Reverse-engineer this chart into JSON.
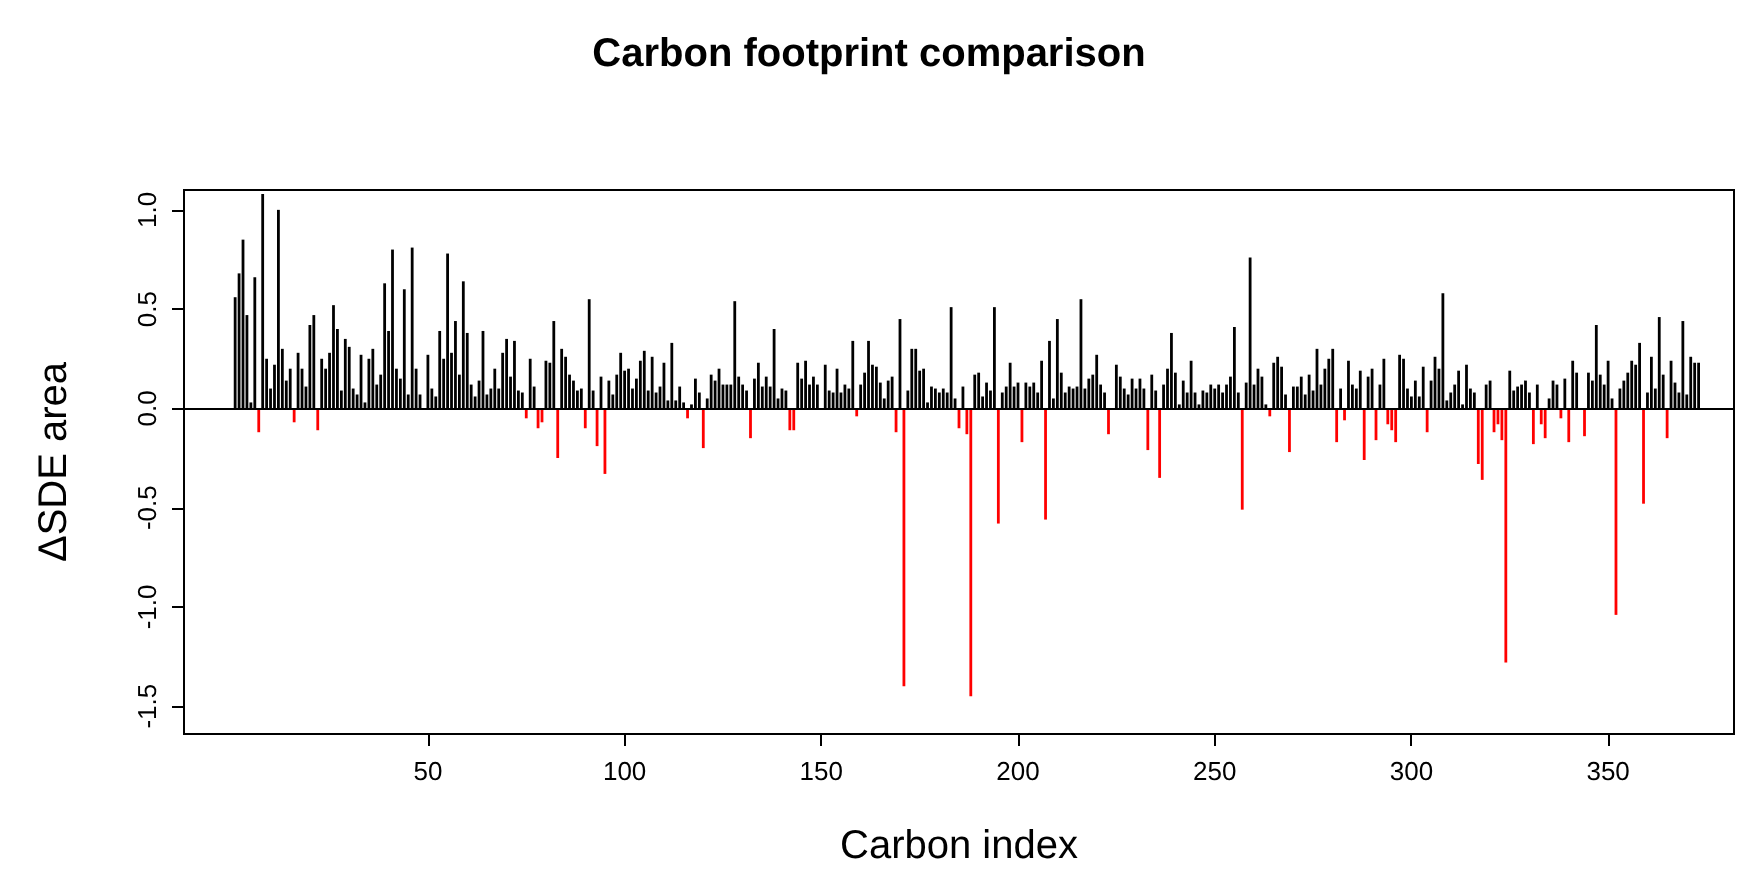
{
  "chart_data": {
    "type": "bar",
    "title": "Carbon footprint comparison",
    "xlabel": "Carbon index",
    "ylabel": "ΔSDE area",
    "x": [
      1,
      2,
      3,
      4,
      5,
      6,
      7,
      8,
      9,
      10,
      11,
      12,
      13,
      14,
      15,
      16,
      17,
      18,
      19,
      20,
      21,
      22,
      23,
      24,
      25,
      26,
      27,
      28,
      29,
      30,
      31,
      32,
      33,
      34,
      35,
      36,
      37,
      38,
      39,
      40,
      41,
      42,
      43,
      44,
      45,
      46,
      47,
      48,
      49,
      50,
      51,
      52,
      53,
      54,
      55,
      56,
      57,
      58,
      59,
      60,
      61,
      62,
      63,
      64,
      65,
      66,
      67,
      68,
      69,
      70,
      71,
      72,
      73,
      74,
      75,
      76,
      77,
      78,
      79,
      80,
      81,
      82,
      83,
      84,
      85,
      86,
      87,
      88,
      89,
      90,
      91,
      92,
      93,
      94,
      95,
      96,
      97,
      98,
      99,
      100,
      101,
      102,
      103,
      104,
      105,
      106,
      107,
      108,
      109,
      110,
      111,
      112,
      113,
      114,
      115,
      116,
      117,
      118,
      119,
      120,
      121,
      122,
      123,
      124,
      125,
      126,
      127,
      128,
      129,
      130,
      131,
      132,
      133,
      134,
      135,
      136,
      137,
      138,
      139,
      140,
      141,
      142,
      143,
      144,
      145,
      146,
      147,
      148,
      149,
      150,
      151,
      152,
      153,
      154,
      155,
      156,
      157,
      158,
      159,
      160,
      161,
      162,
      163,
      164,
      165,
      166,
      167,
      168,
      169,
      170,
      171,
      172,
      173,
      174,
      175,
      176,
      177,
      178,
      179,
      180,
      181,
      182,
      183,
      184,
      185,
      186,
      187,
      188,
      189,
      190,
      191,
      192,
      193,
      194,
      195,
      196,
      197,
      198,
      199,
      200,
      201,
      202,
      203,
      204,
      205,
      206,
      207,
      208,
      209,
      210,
      211,
      212,
      213,
      214,
      215,
      216,
      217,
      218,
      219,
      220,
      221,
      222,
      223,
      224,
      225,
      226,
      227,
      228,
      229,
      230,
      231,
      232,
      233,
      234,
      235,
      236,
      237,
      238,
      239,
      240,
      241,
      242,
      243,
      244,
      245,
      246,
      247,
      248,
      249,
      250,
      251,
      252,
      253,
      254,
      255,
      256,
      257,
      258,
      259,
      260,
      261,
      262,
      263,
      264,
      265,
      266,
      267,
      268,
      269,
      270,
      271,
      272,
      273,
      274,
      275,
      276,
      277,
      278,
      279,
      280,
      281,
      282,
      283,
      284,
      285,
      286,
      287,
      288,
      289,
      290,
      291,
      292,
      293,
      294,
      295,
      296,
      297,
      298,
      299,
      300,
      301,
      302,
      303,
      304,
      305,
      306,
      307,
      308,
      309,
      310,
      311,
      312,
      313,
      314,
      315,
      316,
      317,
      318,
      319,
      320,
      321,
      322,
      323,
      324,
      325,
      326,
      327,
      328,
      329,
      330,
      331,
      332,
      333,
      334,
      335,
      336,
      337,
      338,
      339,
      340,
      341,
      342,
      343,
      344,
      345,
      346,
      347,
      348,
      349,
      350,
      351,
      352,
      353,
      354,
      355,
      356,
      357,
      358,
      359,
      360,
      361,
      362,
      363,
      364,
      365,
      366,
      367,
      368,
      369,
      370,
      371,
      372,
      373
    ],
    "series": [
      {
        "color": "#000000",
        "values": [
          0.56,
          0.68,
          0.85,
          0.47,
          0.03,
          0.66,
          null,
          1.08,
          0.25,
          0.1,
          0.22,
          1.0,
          0.3,
          0.14,
          0.2,
          null,
          0.28,
          0.2,
          0.11,
          0.42,
          0.47,
          null,
          0.25,
          0.2,
          0.28,
          0.52,
          0.4,
          0.09,
          0.35,
          0.31,
          0.1,
          0.07,
          0.27,
          0.03,
          0.25,
          0.3,
          0.12,
          0.17,
          0.63,
          0.39,
          0.8,
          0.2,
          0.15,
          0.6,
          0.07,
          0.81,
          0.2,
          0.07,
          null,
          0.27,
          0.1,
          0.06,
          0.39,
          0.25,
          0.78,
          0.28,
          0.44,
          0.17,
          0.64,
          0.38,
          0.12,
          0.06,
          0.14,
          0.39,
          0.07,
          0.1,
          0.2,
          0.1,
          0.28,
          0.35,
          0.16,
          0.34,
          0.09,
          0.08,
          null,
          0.25,
          0.11,
          null,
          null,
          0.24,
          0.23,
          0.44,
          null,
          0.3,
          0.26,
          0.17,
          0.14,
          0.09,
          0.1,
          null,
          0.55,
          0.09,
          null,
          0.16,
          null,
          0.14,
          0.07,
          0.17,
          0.28,
          0.19,
          0.2,
          0.1,
          0.15,
          0.24,
          0.29,
          0.09,
          0.26,
          0.08,
          0.11,
          0.23,
          0.04,
          0.33,
          0.04,
          0.11,
          0.03,
          null,
          0.02,
          0.15,
          0.08,
          null,
          0.05,
          0.17,
          0.14,
          0.2,
          0.12,
          0.12,
          0.12,
          0.54,
          0.16,
          0.12,
          0.09,
          null,
          0.15,
          0.23,
          0.11,
          0.16,
          0.11,
          0.4,
          0.05,
          0.1,
          0.09,
          null,
          null,
          0.23,
          0.15,
          0.24,
          0.12,
          0.16,
          0.12,
          null,
          0.22,
          0.09,
          0.08,
          0.2,
          0.08,
          0.12,
          0.1,
          0.34,
          null,
          0.12,
          0.18,
          0.34,
          0.22,
          0.21,
          0.13,
          0.05,
          0.14,
          0.16,
          null,
          0.45,
          null,
          0.09,
          0.3,
          0.3,
          0.19,
          0.2,
          0.03,
          0.11,
          0.1,
          0.08,
          0.1,
          0.08,
          0.51,
          0.05,
          null,
          0.11,
          null,
          null,
          0.17,
          0.18,
          0.06,
          0.13,
          0.09,
          0.51,
          null,
          0.08,
          0.11,
          0.23,
          0.11,
          0.13,
          null,
          0.13,
          0.11,
          0.13,
          0.08,
          0.24,
          null,
          0.34,
          0.05,
          0.45,
          0.18,
          0.08,
          0.11,
          0.1,
          0.11,
          0.55,
          0.1,
          0.15,
          0.17,
          0.27,
          0.12,
          0.08,
          null,
          null,
          0.22,
          0.16,
          0.1,
          0.07,
          0.15,
          0.1,
          0.15,
          0.1,
          null,
          0.17,
          0.09,
          null,
          0.12,
          0.2,
          0.38,
          0.18,
          0.02,
          0.14,
          0.08,
          0.24,
          0.08,
          0.02,
          0.09,
          0.08,
          0.12,
          0.1,
          0.12,
          0.08,
          0.12,
          0.16,
          0.41,
          0.08,
          null,
          0.13,
          0.76,
          0.12,
          0.2,
          0.16,
          0.02,
          null,
          0.23,
          0.26,
          0.21,
          0.07,
          null,
          0.11,
          0.11,
          0.16,
          0.07,
          0.17,
          0.09,
          0.3,
          0.12,
          0.2,
          0.25,
          0.3,
          null,
          0.1,
          null,
          0.24,
          0.12,
          0.1,
          0.19,
          null,
          0.16,
          0.2,
          null,
          0.12,
          0.25,
          null,
          null,
          null,
          0.27,
          0.25,
          0.1,
          0.06,
          0.14,
          0.06,
          0.21,
          null,
          0.14,
          0.26,
          0.2,
          0.58,
          0.04,
          0.08,
          0.12,
          0.19,
          0.02,
          0.22,
          0.1,
          0.08,
          null,
          null,
          0.12,
          0.14,
          null,
          null,
          null,
          null,
          0.19,
          0.09,
          0.11,
          0.12,
          0.14,
          0.08,
          null,
          0.12,
          null,
          null,
          0.05,
          0.14,
          0.12,
          null,
          0.15,
          null,
          0.24,
          0.18,
          null,
          null,
          0.18,
          0.14,
          0.42,
          0.17,
          0.12,
          0.24,
          0.05,
          null,
          0.1,
          0.14,
          0.18,
          0.24,
          0.22,
          0.33,
          null,
          0.08,
          0.26,
          0.1,
          0.46,
          0.17,
          null,
          0.24,
          0.13,
          0.08,
          0.44,
          0.07,
          0.26,
          0.23,
          0.23
        ]
      },
      {
        "color": "#ff0000",
        "x": [
          7,
          16,
          22,
          75,
          78,
          79,
          83,
          90,
          93,
          95,
          116,
          120,
          132,
          142,
          143,
          150,
          159,
          169,
          171,
          185,
          187,
          188,
          195,
          201,
          207,
          223,
          224,
          233,
          236,
          257,
          264,
          269,
          281,
          283,
          288,
          291,
          294,
          295,
          296,
          304,
          317,
          318,
          321,
          322,
          323,
          324,
          331,
          333,
          334,
          338,
          340,
          343,
          344,
          352,
          359,
          365
        ],
        "values": [
          -0.12,
          -0.07,
          -0.11,
          -0.05,
          -0.1,
          -0.07,
          -0.25,
          -0.1,
          -0.19,
          -0.33,
          -0.05,
          -0.2,
          -0.15,
          -0.11,
          -0.11,
          null,
          -0.04,
          -0.12,
          -1.4,
          -0.1,
          -0.13,
          -1.45,
          -0.58,
          -0.17,
          -0.56,
          -0.13,
          null,
          -0.21,
          -0.35,
          -0.51,
          -0.04,
          -0.22,
          -0.17,
          -0.06,
          -0.26,
          -0.16,
          -0.08,
          -0.11,
          -0.17,
          -0.12,
          -0.28,
          -0.36,
          -0.12,
          -0.08,
          -0.16,
          -1.28,
          -0.18,
          -0.08,
          -0.15,
          -0.05,
          -0.17,
          null,
          -0.14,
          -1.04,
          -0.48,
          -0.15
        ]
      }
    ],
    "ref_lines": [
      {
        "axis": "y",
        "value": 0,
        "color": "#000000"
      }
    ],
    "xlim": [
      -12,
      382
    ],
    "xticks": [
      50,
      100,
      150,
      200,
      250,
      300,
      350
    ],
    "ylim": [
      -1.64,
      1.1
    ],
    "yticks": [
      {
        "value": -1.5,
        "label": "-1.5"
      },
      {
        "value": -1,
        "label": "-1.0"
      },
      {
        "value": -0.5,
        "label": "-0.5"
      },
      {
        "value": 0,
        "label": "0.0"
      },
      {
        "value": 0.5,
        "label": "0.5"
      },
      {
        "value": 1,
        "label": "1.0"
      }
    ]
  }
}
